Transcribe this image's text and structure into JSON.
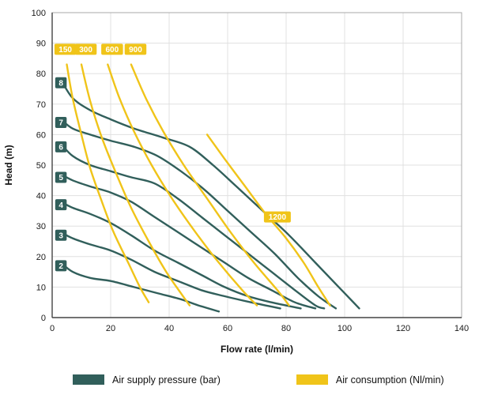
{
  "chart_data": {
    "type": "line",
    "title": "",
    "xlabel": "Flow rate (l/min)",
    "ylabel": "Head (m)",
    "xlim": [
      0,
      140
    ],
    "ylim": [
      0,
      100
    ],
    "xticks": [
      0,
      20,
      40,
      60,
      80,
      100,
      120,
      140
    ],
    "yticks": [
      0,
      10,
      20,
      30,
      40,
      50,
      60,
      70,
      80,
      90,
      100
    ],
    "grid": true,
    "legend_position": "bottom",
    "colors": {
      "pressure": "#315f5b",
      "consumption": "#f0c419"
    },
    "series": [
      {
        "name": "pressure-8-bar",
        "group": "pressure",
        "label": "8",
        "label_pos": [
          3,
          77
        ],
        "points": [
          [
            3,
            78
          ],
          [
            7,
            72
          ],
          [
            13,
            68
          ],
          [
            20,
            65
          ],
          [
            28,
            62
          ],
          [
            38,
            59
          ],
          [
            47,
            56
          ],
          [
            55,
            50
          ],
          [
            63,
            43
          ],
          [
            72,
            35
          ],
          [
            81,
            27
          ],
          [
            90,
            18
          ],
          [
            98,
            10
          ],
          [
            105,
            3
          ]
        ]
      },
      {
        "name": "pressure-7-bar",
        "group": "pressure",
        "label": "7",
        "label_pos": [
          3,
          64
        ],
        "points": [
          [
            3,
            65
          ],
          [
            7,
            62
          ],
          [
            13,
            60
          ],
          [
            20,
            58
          ],
          [
            28,
            56
          ],
          [
            36,
            53
          ],
          [
            44,
            48
          ],
          [
            52,
            42
          ],
          [
            60,
            35
          ],
          [
            68,
            28
          ],
          [
            76,
            21
          ],
          [
            84,
            13
          ],
          [
            91,
            7
          ],
          [
            97,
            3
          ]
        ]
      },
      {
        "name": "pressure-6-bar",
        "group": "pressure",
        "label": "6",
        "label_pos": [
          3,
          56
        ],
        "points": [
          [
            3,
            57
          ],
          [
            7,
            53
          ],
          [
            13,
            50
          ],
          [
            20,
            48
          ],
          [
            27,
            46
          ],
          [
            35,
            44
          ],
          [
            43,
            39
          ],
          [
            51,
            33
          ],
          [
            59,
            27
          ],
          [
            67,
            21
          ],
          [
            75,
            15
          ],
          [
            83,
            9
          ],
          [
            90,
            4
          ],
          [
            93,
            3
          ]
        ]
      },
      {
        "name": "pressure-5-bar",
        "group": "pressure",
        "label": "5",
        "label_pos": [
          3,
          46
        ],
        "points": [
          [
            3,
            47
          ],
          [
            7,
            45
          ],
          [
            13,
            43
          ],
          [
            20,
            41
          ],
          [
            27,
            38
          ],
          [
            35,
            33
          ],
          [
            43,
            28
          ],
          [
            51,
            23
          ],
          [
            59,
            18
          ],
          [
            67,
            13
          ],
          [
            75,
            9
          ],
          [
            83,
            5
          ],
          [
            90,
            3
          ]
        ]
      },
      {
        "name": "pressure-4-bar",
        "group": "pressure",
        "label": "4",
        "label_pos": [
          3,
          37
        ],
        "points": [
          [
            3,
            38
          ],
          [
            7,
            36
          ],
          [
            13,
            34
          ],
          [
            20,
            31
          ],
          [
            27,
            27
          ],
          [
            35,
            22
          ],
          [
            43,
            18
          ],
          [
            51,
            14
          ],
          [
            59,
            10
          ],
          [
            67,
            7
          ],
          [
            75,
            5
          ],
          [
            85,
            3
          ]
        ]
      },
      {
        "name": "pressure-3-bar",
        "group": "pressure",
        "label": "3",
        "label_pos": [
          3,
          27
        ],
        "points": [
          [
            3,
            28
          ],
          [
            7,
            26
          ],
          [
            13,
            24
          ],
          [
            20,
            22
          ],
          [
            27,
            19
          ],
          [
            35,
            15
          ],
          [
            43,
            12
          ],
          [
            51,
            9
          ],
          [
            59,
            7
          ],
          [
            68,
            5
          ],
          [
            78,
            3
          ]
        ]
      },
      {
        "name": "pressure-2-bar",
        "group": "pressure",
        "label": "2",
        "label_pos": [
          3,
          17
        ],
        "points": [
          [
            3,
            18
          ],
          [
            7,
            15
          ],
          [
            13,
            13
          ],
          [
            20,
            12
          ],
          [
            28,
            10
          ],
          [
            36,
            8
          ],
          [
            44,
            6
          ],
          [
            50,
            4
          ],
          [
            57,
            2
          ]
        ]
      },
      {
        "name": "consumption-150",
        "group": "consumption",
        "label": "150",
        "label_pos": [
          4.5,
          88
        ],
        "points": [
          [
            5,
            83
          ],
          [
            7,
            72
          ],
          [
            10,
            60
          ],
          [
            13,
            49
          ],
          [
            17,
            38
          ],
          [
            21,
            28
          ],
          [
            26,
            18
          ],
          [
            30,
            10
          ],
          [
            33,
            5
          ]
        ]
      },
      {
        "name": "consumption-300",
        "group": "consumption",
        "label": "300",
        "label_pos": [
          11.5,
          88
        ],
        "points": [
          [
            10,
            83
          ],
          [
            13,
            71
          ],
          [
            17,
            59
          ],
          [
            22,
            47
          ],
          [
            27,
            36
          ],
          [
            33,
            25
          ],
          [
            39,
            15
          ],
          [
            44,
            8
          ],
          [
            47,
            4
          ]
        ]
      },
      {
        "name": "consumption-600",
        "group": "consumption",
        "label": "600",
        "label_pos": [
          20.5,
          88
        ],
        "points": [
          [
            19,
            83
          ],
          [
            23,
            72
          ],
          [
            28,
            61
          ],
          [
            34,
            50
          ],
          [
            41,
            39
          ],
          [
            49,
            28
          ],
          [
            57,
            18
          ],
          [
            65,
            9
          ],
          [
            70,
            4
          ]
        ]
      },
      {
        "name": "consumption-900",
        "group": "consumption",
        "label": "900",
        "label_pos": [
          28.5,
          88
        ],
        "points": [
          [
            27,
            83
          ],
          [
            32,
            72
          ],
          [
            38,
            61
          ],
          [
            45,
            50
          ],
          [
            53,
            39
          ],
          [
            61,
            28
          ],
          [
            69,
            18
          ],
          [
            77,
            9
          ],
          [
            81,
            4
          ]
        ]
      },
      {
        "name": "consumption-1200",
        "group": "consumption",
        "label": "1200",
        "label_pos": [
          77,
          33
        ],
        "points": [
          [
            53,
            60
          ],
          [
            59,
            52
          ],
          [
            66,
            43
          ],
          [
            73,
            34
          ],
          [
            80,
            26
          ],
          [
            86,
            18
          ],
          [
            91,
            10
          ],
          [
            95,
            4
          ]
        ]
      }
    ],
    "legend": [
      {
        "label": "Air supply pressure (bar)",
        "color": "#315f5b"
      },
      {
        "label": "Air consumption (Nl/min)",
        "color": "#f0c419"
      }
    ]
  }
}
